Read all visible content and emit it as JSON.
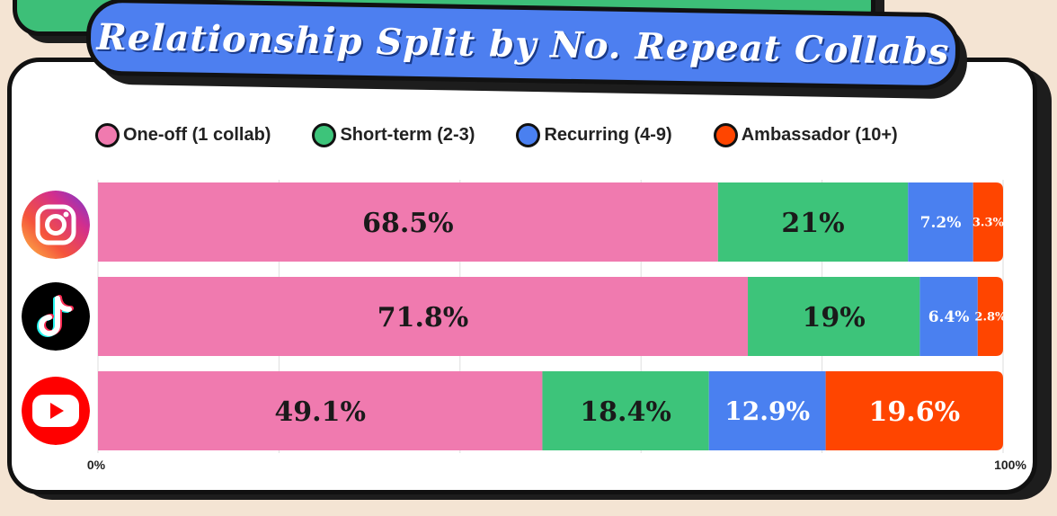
{
  "title": "Relationship Split by No. Repeat Collabs",
  "legend": [
    {
      "label": "One-off (1 collab)",
      "color": "#f07aaf"
    },
    {
      "label": "Short-term (2-3)",
      "color": "#3dc47a"
    },
    {
      "label": "Recurring (4-9)",
      "color": "#4a80f0"
    },
    {
      "label": "Ambassador (10+)",
      "color": "#ff4500"
    }
  ],
  "platforms": [
    {
      "icon": "instagram-icon"
    },
    {
      "icon": "tiktok-icon"
    },
    {
      "icon": "youtube-icon"
    }
  ],
  "chart_data": {
    "type": "bar",
    "orientation": "horizontal",
    "stacked": true,
    "normalized": true,
    "categories": [
      "",
      "",
      ""
    ],
    "series": [
      {
        "name": "One-off (1 collab)",
        "values": [
          68.5,
          71.8,
          49.1
        ],
        "labels": [
          "68.5%",
          "71.8%",
          "49.1%"
        ],
        "color": "#f07aaf"
      },
      {
        "name": "Short-term (2-3)",
        "values": [
          21,
          19,
          18.4
        ],
        "labels": [
          "21%",
          "19%",
          "18.4%"
        ],
        "color": "#3dc47a"
      },
      {
        "name": "Recurring (4-9)",
        "values": [
          7.2,
          6.4,
          12.9
        ],
        "labels": [
          "7.2%",
          "6.4%",
          "12.9%"
        ],
        "color": "#4a80f0"
      },
      {
        "name": "Ambassador (10+)",
        "values": [
          3.3,
          2.8,
          19.6
        ],
        "labels": [
          "3.3%",
          "2.8%",
          "19.6%"
        ],
        "color": "#ff4500"
      }
    ],
    "xlim": [
      0,
      100
    ],
    "xtick_labels": [
      "0%",
      "100%"
    ],
    "grid": true,
    "legend_position": "top"
  }
}
